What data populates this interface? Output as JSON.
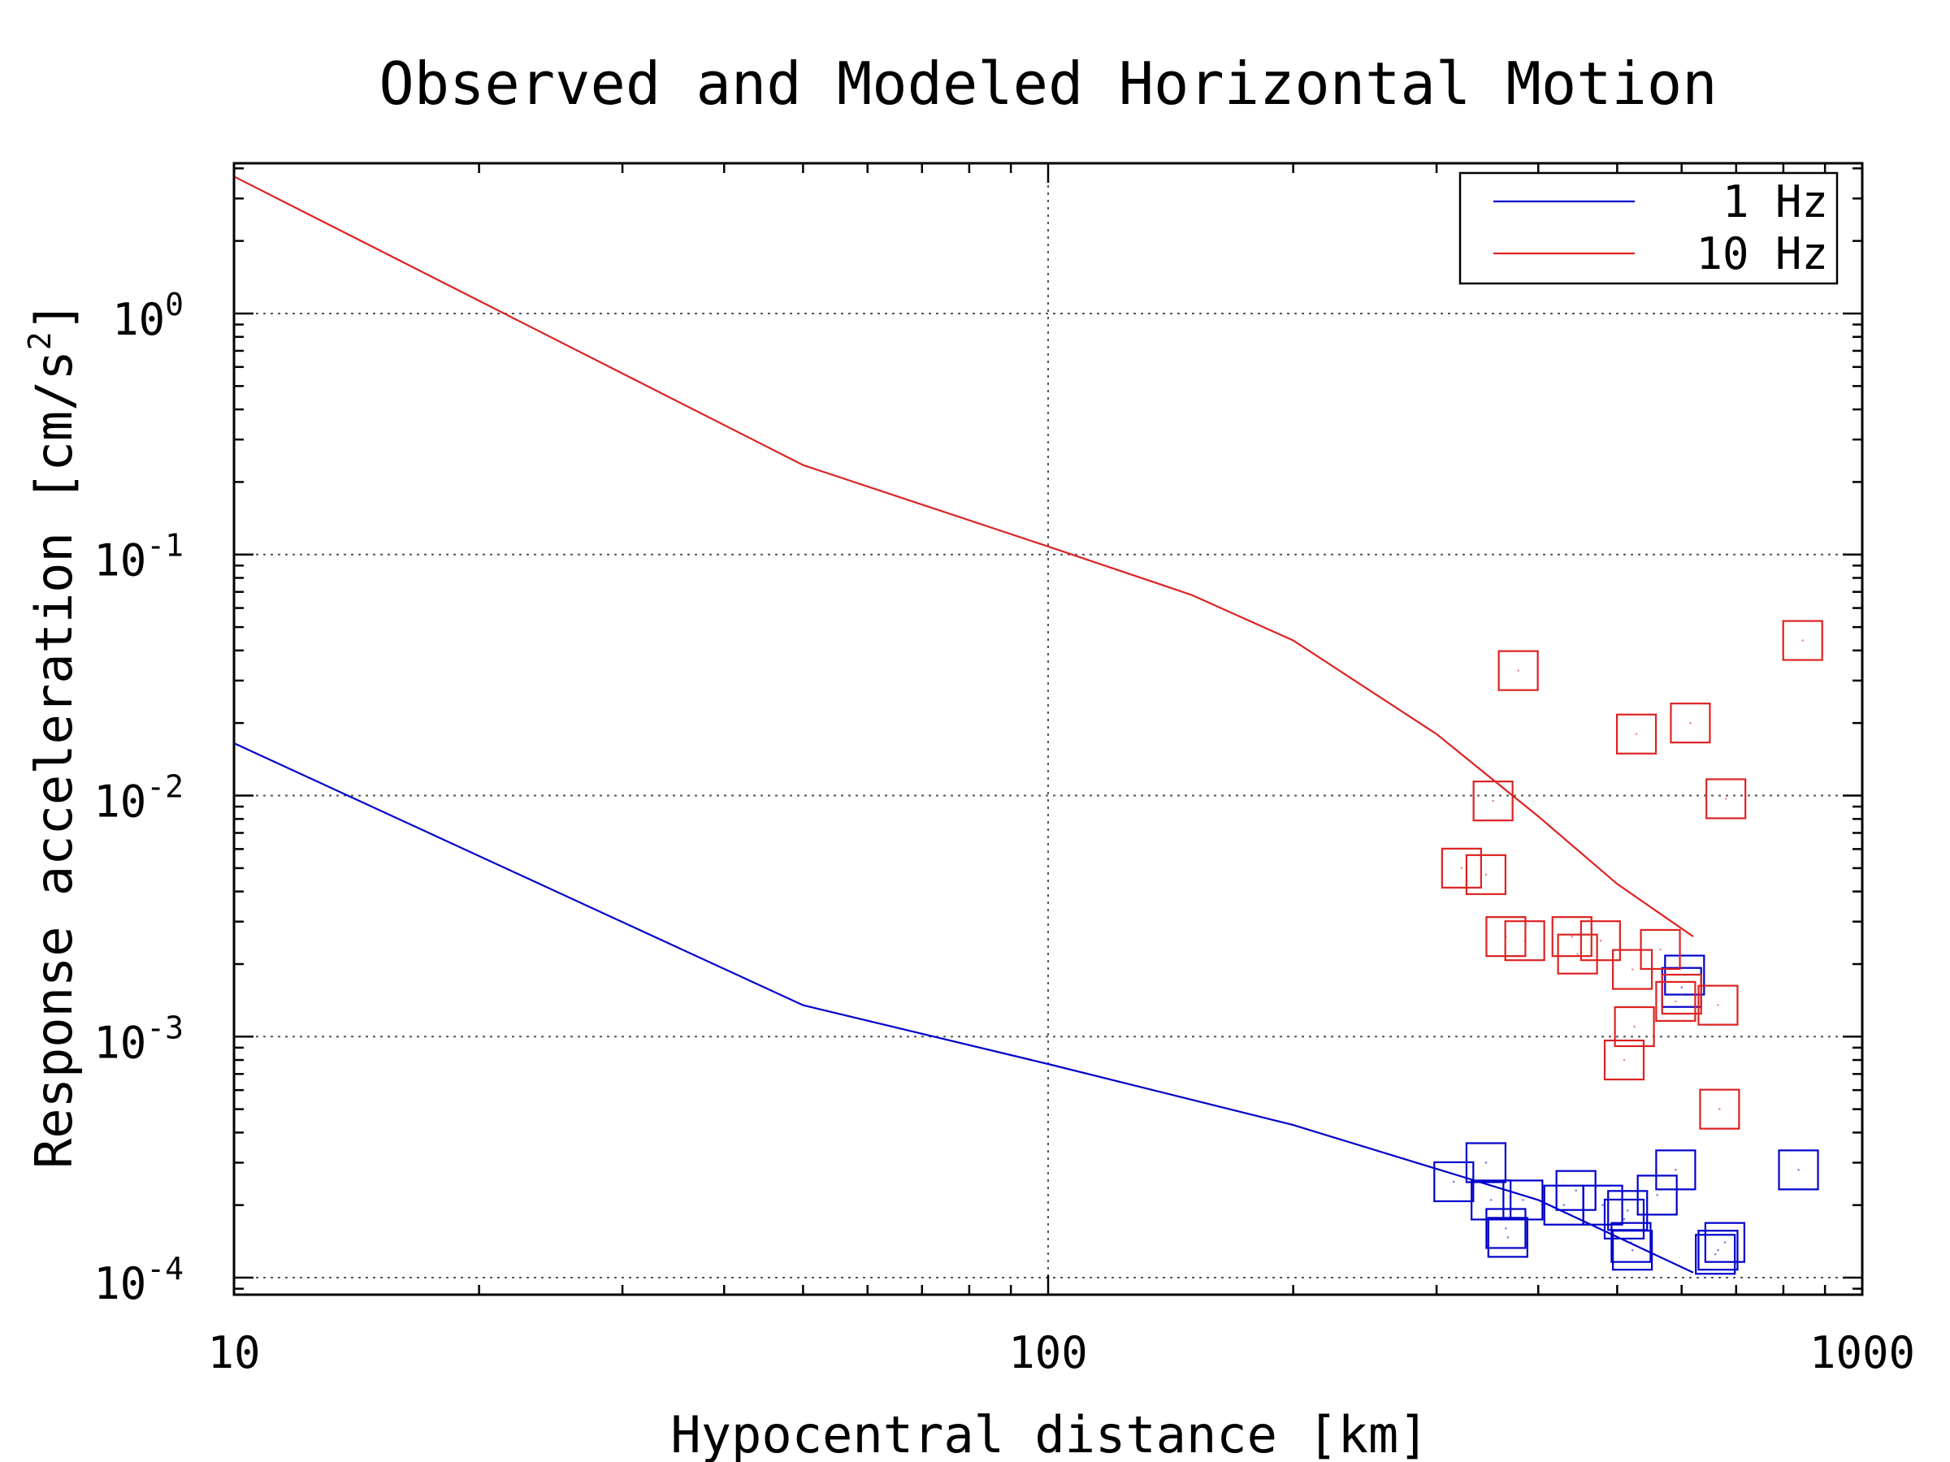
{
  "chart_data": {
    "type": "scatter",
    "title": "Observed and Modeled Horizontal Motion",
    "xlabel": "Hypocentral distance [km]",
    "ylabel": "Response acceleration [cm/s",
    "ylabel_sup": "2",
    "ylabel_end": "]",
    "xscale": "log",
    "yscale": "log",
    "xlim": [
      10,
      1000
    ],
    "ylim": [
      8.5e-05,
      4.2
    ],
    "x_ticks": [
      {
        "value": 10,
        "label": "10"
      },
      {
        "value": 100,
        "label": "100"
      },
      {
        "value": 1000,
        "label": "1000"
      }
    ],
    "y_ticks": [
      {
        "value": 0.0001,
        "base": "10",
        "exp": "-4"
      },
      {
        "value": 0.001,
        "base": "10",
        "exp": "-3"
      },
      {
        "value": 0.01,
        "base": "10",
        "exp": "-2"
      },
      {
        "value": 0.1,
        "base": "10",
        "exp": "-1"
      },
      {
        "value": 1,
        "base": "10",
        "exp": "0"
      }
    ],
    "grid": true,
    "legend_position": "top-right",
    "series": [
      {
        "name": "1 Hz",
        "color": "#0000cc",
        "model_line": [
          [
            10,
            0.0165
          ],
          [
            50,
            0.00135
          ],
          [
            100,
            0.00077
          ],
          [
            200,
            0.00043
          ],
          [
            400,
            0.00021
          ],
          [
            620,
            0.000105
          ]
        ],
        "observed": [
          [
            315,
            0.00025
          ],
          [
            345,
            0.0003
          ],
          [
            350,
            0.00021
          ],
          [
            365,
            0.00016
          ],
          [
            367,
            0.000147
          ],
          [
            383,
            0.00021
          ],
          [
            430,
            0.0002
          ],
          [
            445,
            0.00023
          ],
          [
            480,
            0.0002
          ],
          [
            510,
            0.000175
          ],
          [
            515,
            0.00019
          ],
          [
            520,
            0.00014
          ],
          [
            522,
            0.00013
          ],
          [
            560,
            0.00022
          ],
          [
            590,
            0.00028
          ],
          [
            600,
            0.0016
          ],
          [
            605,
            0.0018
          ],
          [
            660,
            0.000125
          ],
          [
            665,
            0.00013
          ],
          [
            678,
            0.00014
          ],
          [
            835,
            0.00028
          ]
        ]
      },
      {
        "name": "10 Hz",
        "color": "#dd2222",
        "model_line": [
          [
            10,
            3.7
          ],
          [
            50,
            0.235
          ],
          [
            100,
            0.108
          ],
          [
            150,
            0.068
          ],
          [
            200,
            0.044
          ],
          [
            300,
            0.018
          ],
          [
            400,
            0.0082
          ],
          [
            500,
            0.0043
          ],
          [
            620,
            0.0026
          ]
        ],
        "observed": [
          [
            322,
            0.005
          ],
          [
            345,
            0.0047
          ],
          [
            352,
            0.0095
          ],
          [
            365,
            0.0026
          ],
          [
            378,
            0.033
          ],
          [
            385,
            0.0025
          ],
          [
            440,
            0.0026
          ],
          [
            447,
            0.0022
          ],
          [
            477,
            0.0025
          ],
          [
            510,
            0.0008
          ],
          [
            522,
            0.0019
          ],
          [
            525,
            0.0011
          ],
          [
            528,
            0.018
          ],
          [
            565,
            0.0023
          ],
          [
            590,
            0.0014
          ],
          [
            600,
            0.0015
          ],
          [
            615,
            0.02
          ],
          [
            665,
            0.00135
          ],
          [
            668,
            0.0005
          ],
          [
            680,
            0.0097
          ],
          [
            845,
            0.044
          ]
        ]
      }
    ]
  }
}
